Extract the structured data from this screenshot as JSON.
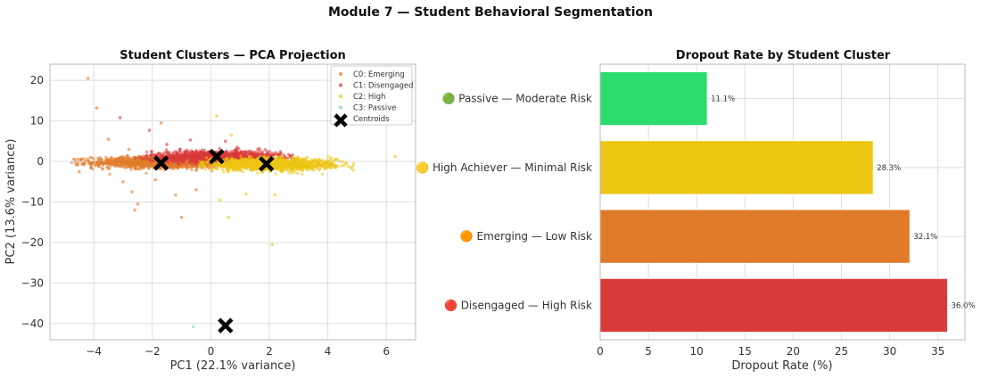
{
  "figure_title": "Module 7 — Student Behavioral Segmentation",
  "chart_data": [
    {
      "type": "scatter",
      "title": "Student Clusters — PCA Projection",
      "xlabel": "PC1 (22.1% variance)",
      "ylabel": "PC2 (13.6% variance)",
      "xlim": [
        -5.5,
        7.0
      ],
      "ylim": [
        -44,
        24
      ],
      "xticks": [
        -4,
        -2,
        0,
        2,
        4,
        6
      ],
      "yticks": [
        -40,
        -30,
        -20,
        -10,
        0,
        10,
        20
      ],
      "grid": true,
      "legend_position": "top-right",
      "series": [
        {
          "name": "C0: Emerging",
          "color": "#e07b2a",
          "cluster": {
            "cx": -1.6,
            "cy": -0.2,
            "sx": 1.2,
            "sy": 0.7,
            "xmin": -4.8,
            "xmax": 1.2,
            "n": 1400
          },
          "outliers": [
            [
              -4.2,
              20.5
            ],
            [
              -3.9,
              13.2
            ],
            [
              -1.7,
              9.5
            ],
            [
              -2.8,
              3.0
            ],
            [
              -3.5,
              5.5
            ],
            [
              -2.7,
              -7.5
            ],
            [
              -2.5,
              -10.5
            ],
            [
              -2.6,
              -12.0
            ],
            [
              -1.0,
              -13.8
            ],
            [
              -1.9,
              -4.5
            ],
            [
              -3.0,
              -5.0
            ],
            [
              -0.5,
              -7.0
            ],
            [
              -1.2,
              -8.3
            ],
            [
              -4.5,
              -2.5
            ]
          ]
        },
        {
          "name": "C1: Disengaged",
          "color": "#d93a3a",
          "cluster": {
            "cx": 0.2,
            "cy": 1.2,
            "sx": 1.1,
            "sy": 0.7,
            "xmin": -2.6,
            "xmax": 2.8,
            "n": 1200
          },
          "outliers": [
            [
              -3.1,
              10.8
            ],
            [
              -2.1,
              7.7
            ],
            [
              -0.7,
              5.3
            ],
            [
              0.5,
              5.0
            ],
            [
              -1.5,
              4.2
            ],
            [
              0.9,
              3.5
            ],
            [
              1.6,
              3.0
            ]
          ]
        },
        {
          "name": "C2: High",
          "color": "#ecc512",
          "cluster": {
            "cx": 2.0,
            "cy": -0.7,
            "sx": 1.1,
            "sy": 0.7,
            "xmin": -0.4,
            "xmax": 5.2,
            "n": 1400
          },
          "outliers": [
            [
              0.2,
              11.2
            ],
            [
              0.7,
              6.5
            ],
            [
              1.2,
              -8.0
            ],
            [
              2.2,
              -8.2
            ],
            [
              2.1,
              -20.5
            ],
            [
              6.3,
              1.2
            ],
            [
              0.6,
              -13.8
            ],
            [
              0.3,
              -9.5
            ]
          ]
        },
        {
          "name": "C3: Passive",
          "color": "#7fd3c0",
          "cluster": null,
          "outliers": [
            [
              -0.6,
              -40.8
            ]
          ]
        }
      ],
      "centroids": {
        "name": "Centroids",
        "points": [
          [
            -1.7,
            -0.4
          ],
          [
            0.2,
            1.2
          ],
          [
            1.9,
            -0.6
          ],
          [
            0.5,
            -40.5
          ]
        ]
      }
    },
    {
      "type": "bar",
      "orientation": "horizontal",
      "title": "Dropout Rate by Student Cluster",
      "xlabel": "Dropout Rate (%)",
      "ylabel": "",
      "xlim": [
        0,
        37.8
      ],
      "xticks": [
        0,
        5,
        10,
        15,
        20,
        25,
        30,
        35
      ],
      "grid": true,
      "categories": [
        "🟢 Passive — Moderate Risk",
        "🟡 High Achiever — Minimal Risk",
        "🟠 Emerging — Low Risk",
        "🔴 Disengaged — High Risk"
      ],
      "values": [
        11.1,
        28.3,
        32.1,
        36.0
      ],
      "value_labels": [
        "11.1%",
        "28.3%",
        "32.1%",
        "36.0%"
      ],
      "colors": [
        "#2ddc6e",
        "#ecc512",
        "#e07b2a",
        "#d93a3a"
      ]
    }
  ]
}
